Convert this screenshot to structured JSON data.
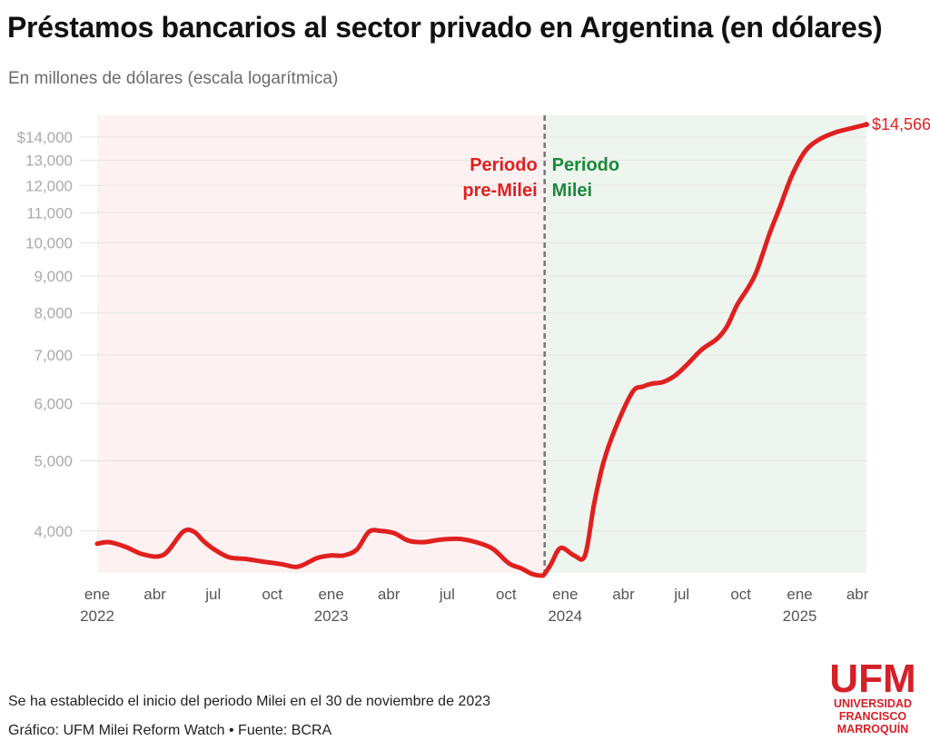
{
  "title": "Préstamos bancarios al sector privado en Argentina (en dólares)",
  "subtitle": "En millones de dólares (escala logarítmica)",
  "footer": {
    "note": "Se ha establecido el inicio del periodo Milei en el 30 de noviembre de 2023",
    "source": "Gráfico: UFM Milei Reform Watch • Fuente: BCRA"
  },
  "logo": {
    "name": "UFM",
    "line1": "UNIVERSIDAD",
    "line2": "FRANCISCO",
    "line3": "MARROQUÍN"
  },
  "colors": {
    "line": "#e02020",
    "pre_period_bg": "#fdf1f1",
    "milei_period_bg": "#eef4ee",
    "pre_label": "#e02020",
    "milei_label": "#1a8a3a",
    "divider": "#777777"
  },
  "chart_data": {
    "type": "line",
    "scale": "log",
    "ylim": [
      3500,
      15000
    ],
    "y_ticks": [
      4000,
      5000,
      6000,
      7000,
      8000,
      9000,
      10000,
      11000,
      12000,
      13000,
      14000
    ],
    "y_tick_labels": [
      "4,000",
      "5,000",
      "6,000",
      "7,000",
      "8,000",
      "9,000",
      "10,000",
      "11,000",
      "12,000",
      "13,000",
      "$14,000"
    ],
    "x_ticks": [
      {
        "date": "2022-01-01",
        "label": "ene",
        "year": "2022"
      },
      {
        "date": "2022-04-01",
        "label": "abr",
        "year": ""
      },
      {
        "date": "2022-07-01",
        "label": "jul",
        "year": ""
      },
      {
        "date": "2022-10-01",
        "label": "oct",
        "year": ""
      },
      {
        "date": "2023-01-01",
        "label": "ene",
        "year": "2023"
      },
      {
        "date": "2023-04-01",
        "label": "abr",
        "year": ""
      },
      {
        "date": "2023-07-01",
        "label": "jul",
        "year": ""
      },
      {
        "date": "2023-10-01",
        "label": "oct",
        "year": ""
      },
      {
        "date": "2024-01-01",
        "label": "ene",
        "year": "2024"
      },
      {
        "date": "2024-04-01",
        "label": "abr",
        "year": ""
      },
      {
        "date": "2024-07-01",
        "label": "jul",
        "year": ""
      },
      {
        "date": "2024-10-01",
        "label": "oct",
        "year": ""
      },
      {
        "date": "2025-01-01",
        "label": "ene",
        "year": "2025"
      },
      {
        "date": "2025-04-01",
        "label": "abr",
        "year": ""
      }
    ],
    "xlim": [
      "2022-01-01",
      "2025-04-15"
    ],
    "divider_date": "2023-11-30",
    "pre_label": [
      "Periodo",
      "pre-Milei"
    ],
    "milei_label": [
      "Periodo",
      "Milei"
    ],
    "end_label": "$14,566",
    "series": [
      {
        "x": [
          "2022-01-01",
          "2022-01-20",
          "2022-02-15",
          "2022-03-15",
          "2022-04-15",
          "2022-05-15",
          "2022-06-01",
          "2022-06-15",
          "2022-07-01",
          "2022-07-25",
          "2022-08-20",
          "2022-09-15",
          "2022-10-15",
          "2022-11-10",
          "2022-12-10",
          "2022-12-31",
          "2023-01-20",
          "2023-02-10",
          "2023-03-01",
          "2023-03-20",
          "2023-04-10",
          "2023-05-01",
          "2023-05-25",
          "2023-06-20",
          "2023-07-20",
          "2023-08-15",
          "2023-09-10",
          "2023-10-05",
          "2023-10-25",
          "2023-11-10",
          "2023-11-25",
          "2023-11-30",
          "2023-12-10",
          "2023-12-25",
          "2024-01-15",
          "2024-02-01",
          "2024-02-15",
          "2024-03-01",
          "2024-03-20",
          "2024-04-15",
          "2024-05-01",
          "2024-05-15",
          "2024-06-01",
          "2024-06-20",
          "2024-07-10",
          "2024-08-01",
          "2024-08-25",
          "2024-09-10",
          "2024-09-25",
          "2024-10-10",
          "2024-10-25",
          "2024-11-15",
          "2024-12-01",
          "2024-12-20",
          "2025-01-10",
          "2025-02-01",
          "2025-02-25",
          "2025-03-20",
          "2025-04-15"
        ],
        "values": [
          3840,
          3860,
          3800,
          3710,
          3710,
          3990,
          3990,
          3880,
          3780,
          3680,
          3660,
          3630,
          3600,
          3570,
          3670,
          3700,
          3700,
          3770,
          3990,
          4000,
          3970,
          3880,
          3860,
          3890,
          3900,
          3860,
          3780,
          3610,
          3550,
          3490,
          3470,
          3490,
          3600,
          3790,
          3700,
          3700,
          4350,
          4980,
          5560,
          6220,
          6330,
          6390,
          6420,
          6550,
          6800,
          7120,
          7370,
          7680,
          8200,
          8600,
          9100,
          10300,
          11200,
          12400,
          13400,
          13900,
          14200,
          14380,
          14566
        ]
      }
    ]
  }
}
